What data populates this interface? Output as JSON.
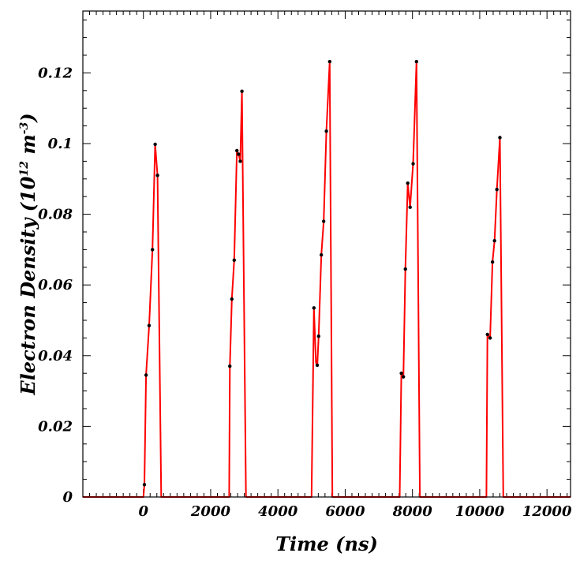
{
  "chart_data": {
    "type": "line",
    "title": "",
    "xlabel": "Time (ns)",
    "ylabel": {
      "prefix": "Electron Density (10",
      "exp1": "12",
      "mid": " m",
      "exp2": "-3",
      "suffix": ")"
    },
    "xlim": [
      -1800,
      12700
    ],
    "ylim": [
      0,
      0.1375
    ],
    "xticks": [
      {
        "value": 0,
        "label": "0"
      },
      {
        "value": 2000,
        "label": "2000"
      },
      {
        "value": 4000,
        "label": "4000"
      },
      {
        "value": 6000,
        "label": "6000"
      },
      {
        "value": 8000,
        "label": "8000"
      },
      {
        "value": 10000,
        "label": "10000"
      },
      {
        "value": 12000,
        "label": "12000"
      }
    ],
    "yticks": [
      {
        "value": 0,
        "label": "0"
      },
      {
        "value": 0.02,
        "label": "0.02"
      },
      {
        "value": 0.04,
        "label": "0.04"
      },
      {
        "value": 0.06,
        "label": "0.06"
      },
      {
        "value": 0.08,
        "label": "0.08"
      },
      {
        "value": 0.1,
        "label": "0.1"
      },
      {
        "value": 0.12,
        "label": "0.12"
      }
    ],
    "line_color": "#ff0000",
    "marker_color": "#000000",
    "series": [
      {
        "line": [
          [
            -1800,
            0
          ],
          [
            0,
            0
          ],
          [
            30,
            0.0035
          ],
          [
            80,
            0.0345
          ],
          [
            170,
            0.0485
          ],
          [
            270,
            0.07
          ],
          [
            350,
            0.0998
          ],
          [
            420,
            0.091
          ],
          [
            530,
            0
          ],
          [
            2550,
            0
          ],
          [
            2570,
            0.037
          ],
          [
            2630,
            0.056
          ],
          [
            2700,
            0.067
          ],
          [
            2780,
            0.098
          ],
          [
            2830,
            0.097
          ],
          [
            2880,
            0.095
          ],
          [
            2930,
            0.1148
          ],
          [
            3050,
            0
          ],
          [
            5000,
            0
          ],
          [
            5070,
            0.0535
          ],
          [
            5130,
            0.038
          ],
          [
            5170,
            0.0373
          ],
          [
            5210,
            0.0455
          ],
          [
            5290,
            0.0685
          ],
          [
            5360,
            0.078
          ],
          [
            5440,
            0.1035
          ],
          [
            5540,
            0.1232
          ],
          [
            5620,
            0
          ],
          [
            7620,
            0
          ],
          [
            7670,
            0.035
          ],
          [
            7730,
            0.034
          ],
          [
            7790,
            0.0645
          ],
          [
            7860,
            0.0888
          ],
          [
            7930,
            0.082
          ],
          [
            8020,
            0.0943
          ],
          [
            8120,
            0.1232
          ],
          [
            8220,
            0
          ],
          [
            10200,
            0
          ],
          [
            10230,
            0.046
          ],
          [
            10310,
            0.045
          ],
          [
            10380,
            0.0665
          ],
          [
            10440,
            0.0725
          ],
          [
            10510,
            0.087
          ],
          [
            10600,
            0.1017
          ],
          [
            10700,
            0
          ],
          [
            12700,
            0
          ]
        ],
        "markers": [
          [
            30,
            0.0035
          ],
          [
            80,
            0.0345
          ],
          [
            170,
            0.0485
          ],
          [
            270,
            0.07
          ],
          [
            350,
            0.0998
          ],
          [
            420,
            0.091
          ],
          [
            2570,
            0.037
          ],
          [
            2630,
            0.056
          ],
          [
            2700,
            0.067
          ],
          [
            2780,
            0.098
          ],
          [
            2830,
            0.097
          ],
          [
            2880,
            0.095
          ],
          [
            2930,
            0.1148
          ],
          [
            5070,
            0.0535
          ],
          [
            5170,
            0.0373
          ],
          [
            5210,
            0.0455
          ],
          [
            5290,
            0.0685
          ],
          [
            5360,
            0.078
          ],
          [
            5440,
            0.1035
          ],
          [
            5540,
            0.1232
          ],
          [
            7670,
            0.035
          ],
          [
            7730,
            0.034
          ],
          [
            7790,
            0.0645
          ],
          [
            7860,
            0.0888
          ],
          [
            7930,
            0.082
          ],
          [
            8020,
            0.0943
          ],
          [
            8120,
            0.1232
          ],
          [
            10230,
            0.046
          ],
          [
            10310,
            0.045
          ],
          [
            10380,
            0.0665
          ],
          [
            10440,
            0.0725
          ],
          [
            10510,
            0.087
          ],
          [
            10600,
            0.1017
          ]
        ]
      }
    ]
  }
}
